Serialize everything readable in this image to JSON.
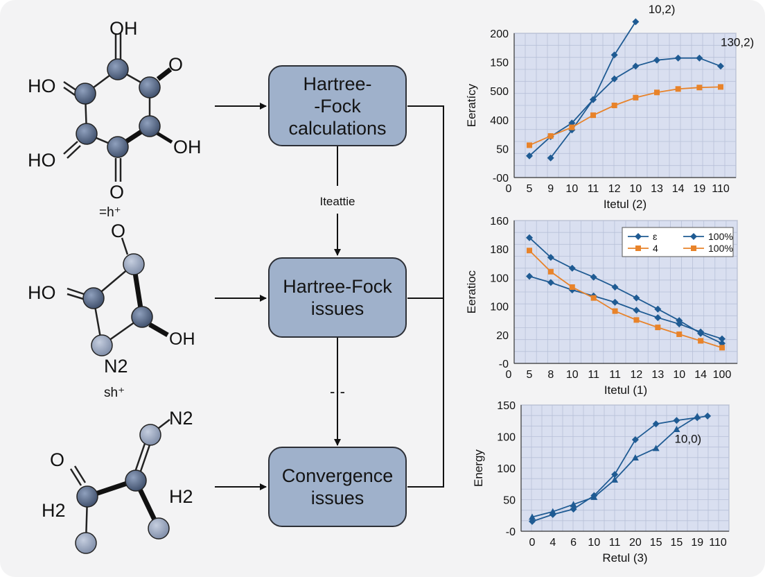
{
  "molecules": [
    {
      "atom_labels": [
        "OH",
        "O",
        "HO",
        "OH",
        "HO",
        "O"
      ],
      "charge": "=h⁺"
    },
    {
      "atom_labels": [
        "O",
        "HO",
        "OH",
        "N2"
      ],
      "charge": "sh⁺"
    },
    {
      "atom_labels": [
        "N2",
        "O",
        "H2",
        "H2"
      ],
      "charge": ""
    }
  ],
  "flow": {
    "boxes": [
      {
        "line1": "Hartree-",
        "line2": "-Fock",
        "line3": "calculations"
      },
      {
        "line1": "Hartree-Fock",
        "line2": "issues",
        "line3": ""
      },
      {
        "line1": "Convergence",
        "line2": "issues",
        "line3": ""
      }
    ],
    "edge_labels": [
      "Iteattie",
      "-·-"
    ]
  },
  "colors": {
    "atom": "#5b6f8e",
    "atom_light": "#98a5bd",
    "box_fill": "#9fb1cb",
    "plot_bg": "#d9dff0",
    "series_blue": "#1f5b93",
    "series_orange": "#e8832a"
  },
  "chart_data": [
    {
      "type": "line",
      "title": "",
      "xlabel": "Itetul (2)",
      "ylabel": "Eeratícy",
      "categories": [
        "5",
        "9",
        "10",
        "11",
        "12",
        "10",
        "13",
        "14",
        "19",
        "110"
      ],
      "y_tick_labels": [
        "-00",
        "50",
        "400",
        "500",
        "150",
        "200"
      ],
      "y_tick_values": [
        0,
        1,
        2,
        3,
        4,
        5
      ],
      "ylim": [
        0,
        5
      ],
      "grid": true,
      "series": [
        {
          "color": "blue_a",
          "marker": "diamond",
          "points": [
            [
              1,
              0.68
            ],
            [
              2,
              1.65
            ],
            [
              3,
              2.7
            ],
            [
              4,
              4.25
            ],
            [
              5,
              5.4
            ]
          ]
        },
        {
          "color": "blue_b",
          "marker": "diamond",
          "points": [
            [
              0,
              0.75
            ],
            [
              1,
              1.42
            ],
            [
              2,
              1.89
            ],
            [
              3,
              2.7
            ],
            [
              4,
              3.42
            ],
            [
              5,
              3.86
            ],
            [
              6,
              4.07
            ],
            [
              7,
              4.14
            ],
            [
              8,
              4.14
            ],
            [
              9,
              3.86
            ]
          ]
        },
        {
          "color": "orange",
          "marker": "square",
          "points": [
            [
              0,
              1.12
            ],
            [
              1,
              1.44
            ],
            [
              2,
              1.74
            ],
            [
              3,
              2.16
            ],
            [
              4,
              2.5
            ],
            [
              5,
              2.77
            ],
            [
              6,
              2.95
            ],
            [
              7,
              3.07
            ],
            [
              8,
              3.12
            ],
            [
              9,
              3.14
            ]
          ]
        }
      ],
      "annotations": [
        {
          "text": "10,2)",
          "at": [
            5.6,
            5.7
          ]
        },
        {
          "text": "130,2)",
          "at": [
            9.0,
            4.55
          ]
        }
      ]
    },
    {
      "type": "line",
      "title": "",
      "xlabel": "Itetul (1)",
      "ylabel": "Eeratioc",
      "categories": [
        "5",
        "8",
        "10",
        "11",
        "11",
        "12",
        "13",
        "10",
        "14",
        "100"
      ],
      "y_tick_labels": [
        "-0",
        "20",
        "100",
        "100",
        "180",
        "160"
      ],
      "y_tick_values": [
        0,
        1,
        2,
        3,
        4,
        5
      ],
      "ylim": [
        0,
        5
      ],
      "grid": true,
      "legend": {
        "placement": "top-right",
        "entries": [
          {
            "label": "ɛ",
            "color": "blue"
          },
          {
            "label": "100%",
            "color": "blue"
          },
          {
            "label": "4",
            "color": "orange"
          },
          {
            "label": "100%",
            "color": "orange"
          }
        ]
      },
      "series": [
        {
          "color": "blue_a",
          "marker": "diamond",
          "points": [
            [
              0,
              4.4
            ],
            [
              1,
              3.71
            ],
            [
              2,
              3.33
            ],
            [
              3,
              3.02
            ],
            [
              4,
              2.67
            ],
            [
              5,
              2.29
            ],
            [
              6,
              1.9
            ],
            [
              7,
              1.5
            ],
            [
              8,
              1.05
            ],
            [
              9,
              0.7
            ]
          ]
        },
        {
          "color": "blue_b",
          "marker": "diamond",
          "points": [
            [
              0,
              3.05
            ],
            [
              1,
              2.83
            ],
            [
              2,
              2.57
            ],
            [
              3,
              2.36
            ],
            [
              4,
              2.14
            ],
            [
              5,
              1.86
            ],
            [
              6,
              1.6
            ],
            [
              7,
              1.38
            ],
            [
              8,
              1.1
            ],
            [
              9,
              0.86
            ]
          ]
        },
        {
          "color": "orange",
          "marker": "square",
          "points": [
            [
              0,
              3.95
            ],
            [
              1,
              3.21
            ],
            [
              2,
              2.67
            ],
            [
              3,
              2.29
            ],
            [
              4,
              1.83
            ],
            [
              5,
              1.52
            ],
            [
              6,
              1.26
            ],
            [
              7,
              1.02
            ],
            [
              8,
              0.79
            ],
            [
              9,
              0.55
            ]
          ]
        }
      ]
    },
    {
      "type": "line",
      "title": "",
      "xlabel": "Retul (3)",
      "ylabel": "Energy",
      "categories": [
        "0",
        "4",
        "6",
        "10",
        "11",
        "20",
        "15",
        "15",
        "19",
        "110"
      ],
      "y_tick_labels": [
        "-0",
        "50",
        "100",
        "100",
        "150"
      ],
      "y_tick_values": [
        0,
        1,
        2,
        3,
        4
      ],
      "ylim": [
        0,
        4
      ],
      "grid": true,
      "series": [
        {
          "color": "blue_a",
          "marker": "triangle",
          "points": [
            [
              0,
              0.45
            ],
            [
              1,
              0.62
            ],
            [
              2,
              0.85
            ],
            [
              3,
              1.08
            ],
            [
              4,
              1.63
            ],
            [
              5,
              2.33
            ],
            [
              6,
              2.63
            ],
            [
              7,
              3.23
            ],
            [
              8,
              3.64
            ]
          ]
        },
        {
          "color": "blue_b",
          "marker": "diamond",
          "points": [
            [
              0,
              0.31
            ],
            [
              1,
              0.53
            ],
            [
              2,
              0.7
            ],
            [
              3,
              1.13
            ],
            [
              4,
              1.8
            ],
            [
              5,
              2.9
            ],
            [
              6,
              3.4
            ],
            [
              7,
              3.51
            ],
            [
              8,
              3.6
            ],
            [
              8.5,
              3.65
            ]
          ]
        }
      ],
      "annotations": [
        {
          "text": "10,0)",
          "at": [
            6.9,
            2.8
          ]
        }
      ]
    }
  ]
}
